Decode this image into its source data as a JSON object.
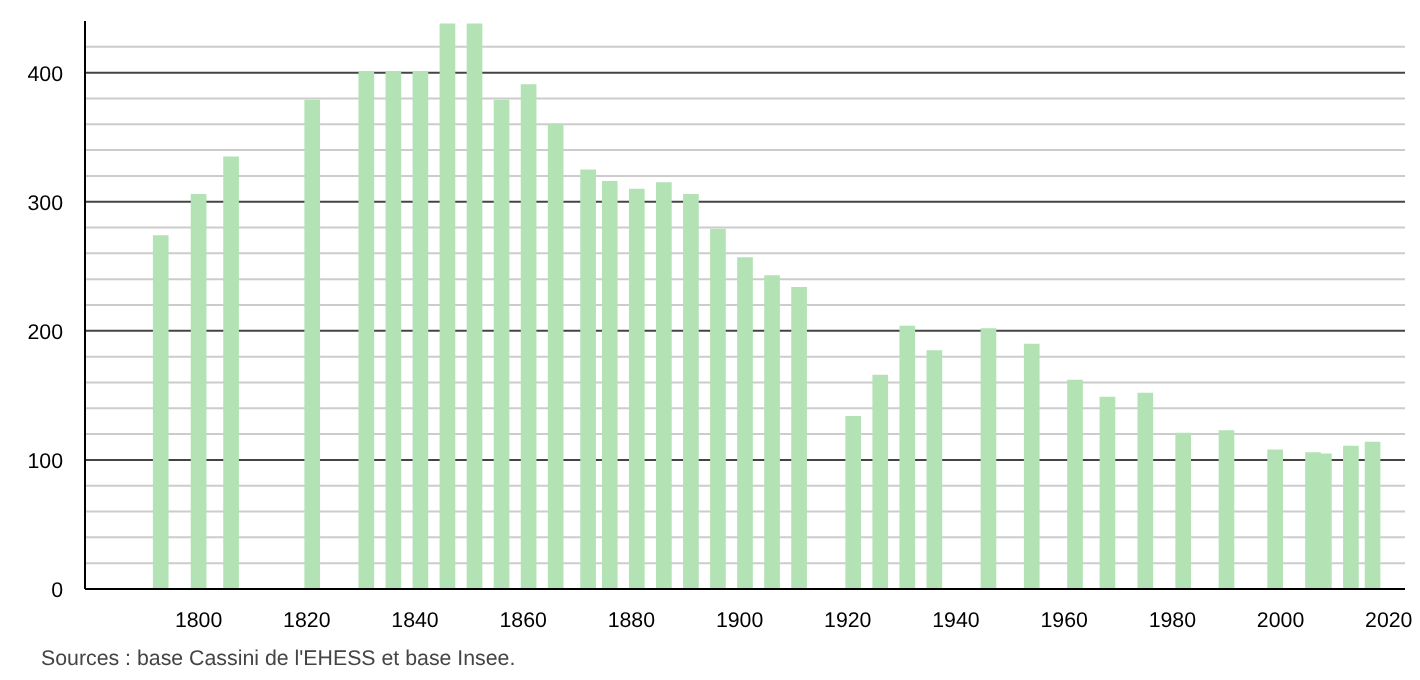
{
  "chart_data": {
    "type": "bar",
    "x": [
      1793,
      1800,
      1806,
      1821,
      1831,
      1836,
      1841,
      1846,
      1851,
      1856,
      1861,
      1866,
      1872,
      1876,
      1881,
      1886,
      1891,
      1896,
      1901,
      1906,
      1911,
      1921,
      1926,
      1931,
      1936,
      1946,
      1954,
      1962,
      1968,
      1975,
      1982,
      1990,
      1999,
      2006,
      2008,
      2013,
      2017
    ],
    "values": [
      274,
      306,
      335,
      379,
      401,
      401,
      401,
      438,
      438,
      379,
      391,
      360,
      325,
      316,
      310,
      315,
      306,
      279,
      257,
      243,
      234,
      134,
      166,
      204,
      185,
      202,
      190,
      162,
      149,
      152,
      121,
      123,
      108,
      106,
      105,
      111,
      114
    ],
    "color": "#b3e3b4",
    "xlim": [
      1779,
      2023
    ],
    "xticks": [
      1800,
      1820,
      1840,
      1860,
      1880,
      1900,
      1920,
      1940,
      1960,
      1980,
      2000,
      2020
    ],
    "ylim": [
      0,
      440
    ],
    "yticks": [
      0,
      {
        "value": 20,
        "label": null
      },
      {
        "value": 40,
        "label": null
      },
      {
        "value": 60,
        "label": null
      },
      {
        "value": 80,
        "label": null
      },
      100,
      {
        "value": 120,
        "label": null
      },
      {
        "value": 140,
        "label": null
      },
      {
        "value": 160,
        "label": null
      },
      {
        "value": 180,
        "label": null
      },
      200,
      {
        "value": 220,
        "label": null
      },
      {
        "value": 240,
        "label": null
      },
      {
        "value": 260,
        "label": null
      },
      {
        "value": 280,
        "label": null
      },
      300,
      {
        "value": 320,
        "label": null
      },
      {
        "value": 340,
        "label": null
      },
      {
        "value": 360,
        "label": null
      },
      {
        "value": 380,
        "label": null
      },
      400,
      {
        "value": 420,
        "label": null
      }
    ],
    "grid": "y",
    "annotations": [
      "Sources : base Cassini de l'EHESS et base Insee."
    ]
  }
}
